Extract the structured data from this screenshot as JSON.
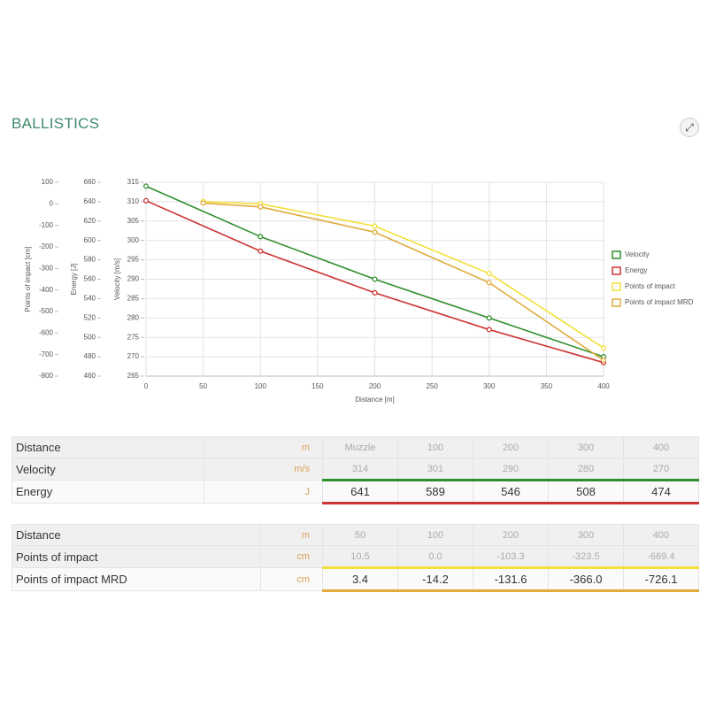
{
  "title": "BALLISTICS",
  "chart_data": {
    "type": "line",
    "xlabel": "Distance [m]",
    "ylabel": "Velocity [m/s]",
    "y2label": "Energy [J]",
    "y3label": "Points of impact [cm]",
    "xlim": [
      0,
      400
    ],
    "xticks": [
      0,
      50,
      100,
      150,
      200,
      250,
      300,
      350,
      400
    ],
    "ylim": [
      265,
      315
    ],
    "yticks": [
      265,
      270,
      275,
      280,
      285,
      290,
      295,
      300,
      305,
      310,
      315
    ],
    "y2lim": [
      460,
      660
    ],
    "y2ticks": [
      460,
      480,
      500,
      520,
      540,
      560,
      580,
      600,
      620,
      640,
      660
    ],
    "y3lim": [
      -800,
      100
    ],
    "y3ticks": [
      -800,
      -700,
      -600,
      -500,
      -400,
      -300,
      -200,
      -100,
      0,
      100
    ],
    "grid": true,
    "legend": "right",
    "series": [
      {
        "name": "Velocity",
        "color": "#2f8f2f",
        "axis": "y",
        "x": [
          0,
          100,
          200,
          300,
          400
        ],
        "values": [
          314,
          301,
          290,
          280,
          270
        ]
      },
      {
        "name": "Energy",
        "color": "#cc3333",
        "axis": "y2",
        "x": [
          0,
          100,
          200,
          300,
          400
        ],
        "values": [
          641,
          589,
          546,
          508,
          474
        ]
      },
      {
        "name": "Points of impact",
        "color": "#f2e03a",
        "axis": "y3",
        "x": [
          50,
          100,
          200,
          300,
          400
        ],
        "values": [
          10.5,
          0.0,
          -103.3,
          -323.5,
          -669.4
        ]
      },
      {
        "name": "Points of impact MRD",
        "color": "#e0aa3a",
        "axis": "y3",
        "x": [
          50,
          100,
          200,
          300,
          400
        ],
        "values": [
          3.4,
          -14.2,
          -131.6,
          -366.0,
          -726.1
        ]
      }
    ]
  },
  "tables": [
    {
      "header": {
        "label": "Distance",
        "unit": "m",
        "values": [
          "Muzzle",
          "100",
          "200",
          "300",
          "400"
        ]
      },
      "rows": [
        {
          "label": "Velocity",
          "unit": "m/s",
          "color": "#2f8f2f",
          "values": [
            "314",
            "301",
            "290",
            "280",
            "270"
          ]
        },
        {
          "label": "Energy",
          "unit": "J",
          "color": "#cc3333",
          "values": [
            "641",
            "589",
            "546",
            "508",
            "474"
          ]
        }
      ]
    },
    {
      "header": {
        "label": "Distance",
        "unit": "m",
        "values": [
          "50",
          "100",
          "200",
          "300",
          "400"
        ]
      },
      "rows": [
        {
          "label": "Points of impact",
          "unit": "cm",
          "color": "#f2e03a",
          "values": [
            "10.5",
            "0.0",
            "-103.3",
            "-323.5",
            "-669.4"
          ]
        },
        {
          "label": "Points of impact MRD",
          "unit": "cm",
          "color": "#e0aa3a",
          "values": [
            "3.4",
            "-14.2",
            "-131.6",
            "-366.0",
            "-726.1"
          ]
        }
      ]
    }
  ]
}
